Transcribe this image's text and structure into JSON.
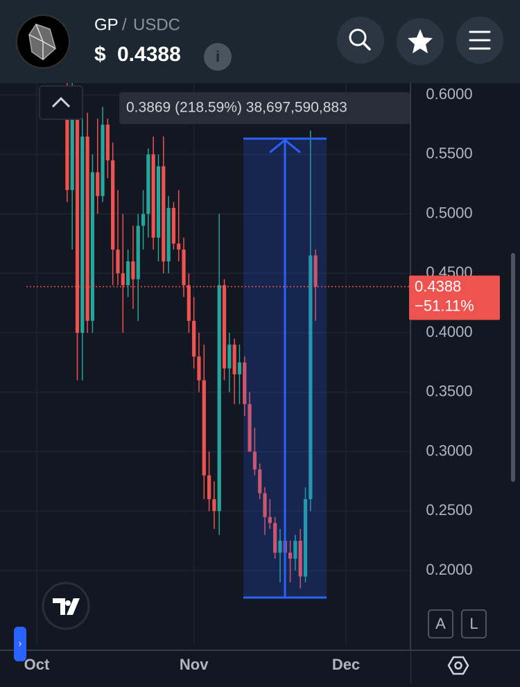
{
  "header": {
    "base": "GP",
    "separator": "/",
    "quote": "USDC",
    "currency": "$",
    "price": "0.4388",
    "info": "i"
  },
  "chart_data": {
    "type": "candlestick",
    "x": [
      6,
      7,
      8,
      9,
      10,
      11,
      12,
      13,
      14,
      15,
      16,
      17,
      18,
      19,
      20,
      21,
      22,
      23,
      24,
      25,
      26,
      27,
      28,
      29,
      30,
      31,
      32,
      33,
      34,
      35,
      36,
      37,
      38,
      39,
      40,
      41,
      42,
      43,
      44,
      45,
      46,
      47,
      48,
      49,
      50,
      51,
      52,
      53,
      54,
      55
    ],
    "open": [
      0.605,
      0.52,
      0.585,
      0.4,
      0.565,
      0.41,
      0.535,
      0.515,
      0.575,
      0.545,
      0.47,
      0.45,
      0.44,
      0.46,
      0.445,
      0.49,
      0.5,
      0.55,
      0.48,
      0.54,
      0.46,
      0.505,
      0.475,
      0.47,
      0.44,
      0.41,
      0.38,
      0.36,
      0.28,
      0.26,
      0.25,
      0.44,
      0.37,
      0.39,
      0.365,
      0.375,
      0.34,
      0.3,
      0.285,
      0.265,
      0.245,
      0.24,
      0.215,
      0.225,
      0.215,
      0.21,
      0.225,
      0.195,
      0.26,
      0.465
    ],
    "high": [
      0.62,
      0.61,
      0.6,
      0.59,
      0.585,
      0.55,
      0.58,
      0.59,
      0.58,
      0.56,
      0.52,
      0.5,
      0.47,
      0.49,
      0.5,
      0.52,
      0.555,
      0.565,
      0.55,
      0.565,
      0.515,
      0.51,
      0.52,
      0.48,
      0.45,
      0.43,
      0.4,
      0.39,
      0.3,
      0.275,
      0.5,
      0.445,
      0.4,
      0.395,
      0.39,
      0.38,
      0.35,
      0.32,
      0.29,
      0.27,
      0.26,
      0.245,
      0.235,
      0.24,
      0.225,
      0.23,
      0.235,
      0.27,
      0.57,
      0.47
    ],
    "low": [
      0.51,
      0.47,
      0.36,
      0.36,
      0.4,
      0.4,
      0.5,
      0.51,
      0.53,
      0.44,
      0.44,
      0.4,
      0.43,
      0.42,
      0.41,
      0.47,
      0.48,
      0.47,
      0.46,
      0.45,
      0.45,
      0.47,
      0.46,
      0.43,
      0.4,
      0.37,
      0.35,
      0.26,
      0.25,
      0.235,
      0.23,
      0.36,
      0.35,
      0.34,
      0.34,
      0.33,
      0.3,
      0.28,
      0.26,
      0.23,
      0.235,
      0.21,
      0.19,
      0.21,
      0.19,
      0.2,
      0.185,
      0.19,
      0.25,
      0.41
    ],
    "close": [
      0.52,
      0.585,
      0.4,
      0.565,
      0.41,
      0.535,
      0.515,
      0.575,
      0.545,
      0.47,
      0.45,
      0.44,
      0.46,
      0.445,
      0.49,
      0.5,
      0.55,
      0.48,
      0.54,
      0.46,
      0.505,
      0.475,
      0.47,
      0.44,
      0.41,
      0.38,
      0.36,
      0.28,
      0.26,
      0.25,
      0.44,
      0.37,
      0.39,
      0.365,
      0.375,
      0.34,
      0.3,
      0.285,
      0.265,
      0.245,
      0.24,
      0.215,
      0.225,
      0.215,
      0.21,
      0.225,
      0.195,
      0.26,
      0.465,
      0.4388
    ],
    "xlim": [
      -7.25,
      73.72
    ],
    "xticks": [
      {
        "value": 0,
        "label": "Oct"
      },
      {
        "value": 31,
        "label": "Nov"
      },
      {
        "value": 61,
        "label": "Dec"
      }
    ],
    "ylim": [
      0.1376,
      0.6099
    ],
    "yticks": [
      {
        "value": 0.2,
        "label": "0.2000"
      },
      {
        "value": 0.25,
        "label": "0.2500"
      },
      {
        "value": 0.3,
        "label": "0.3000"
      },
      {
        "value": 0.35,
        "label": "0.3500"
      },
      {
        "value": 0.4,
        "label": "0.4000"
      },
      {
        "value": 0.45,
        "label": "0.4500"
      },
      {
        "value": 0.5,
        "label": "0.5000"
      },
      {
        "value": 0.55,
        "label": "0.5500"
      },
      {
        "value": 0.6,
        "label": "0.6000"
      }
    ],
    "up_color": "#26a69a",
    "down_color": "#ef5350",
    "last_price": 0.4388,
    "change_label": "−51.11%",
    "measure_label": "0.3869 (218.59%) 38,697,590,883"
  },
  "controls": {
    "auto": "A",
    "log": "L"
  }
}
